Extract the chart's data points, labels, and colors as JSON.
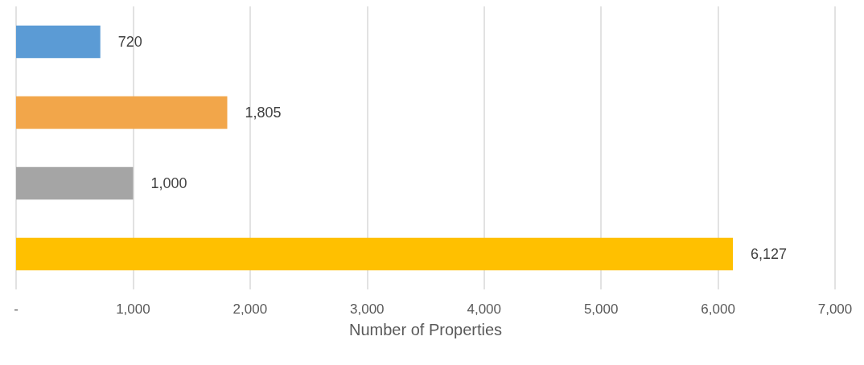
{
  "chart_data": {
    "type": "bar",
    "orientation": "horizontal",
    "xlabel": "Number of Properties",
    "categories": [
      null,
      null,
      null,
      null
    ],
    "values": [
      720,
      1805,
      1000,
      6127
    ],
    "colors": [
      "#5b9bd5",
      "#f2a64a",
      "#a5a5a5",
      "#ffc000"
    ],
    "value_labels": [
      "720",
      "1,805",
      "1,000",
      "6,127"
    ],
    "xlim": [
      0,
      7000
    ],
    "xticks": [
      {
        "value": 0,
        "label": "-"
      },
      {
        "value": 1000,
        "label": "1,000"
      },
      {
        "value": 2000,
        "label": "2,000"
      },
      {
        "value": 3000,
        "label": "3,000"
      },
      {
        "value": 4000,
        "label": "4,000"
      },
      {
        "value": 5000,
        "label": "5,000"
      },
      {
        "value": 6000,
        "label": "6,000"
      },
      {
        "value": 7000,
        "label": "7,000"
      }
    ],
    "grid": "x"
  }
}
